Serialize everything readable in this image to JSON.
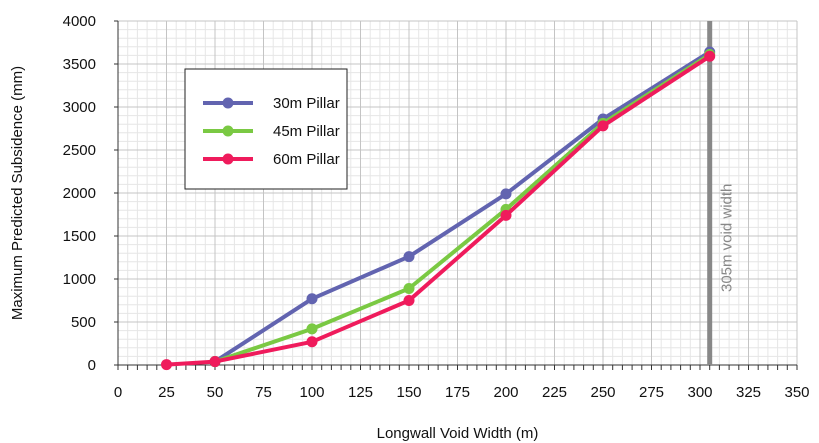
{
  "chart_data": {
    "type": "line",
    "title": "",
    "xlabel": "Longwall Void Width (m)",
    "ylabel": "Maximum Predicted Subsidence (mm)",
    "xlim": [
      0,
      350
    ],
    "ylim": [
      0,
      4000
    ],
    "x_major_step": 25,
    "y_major_step": 500,
    "x_minor_step": 5,
    "y_minor_step": 100,
    "grid": true,
    "legend_position": "top-left",
    "series": [
      {
        "name": "30m Pillar",
        "color": "#6264b0",
        "x": [
          50,
          100,
          150,
          200,
          250,
          305
        ],
        "y": [
          40,
          770,
          1260,
          1990,
          2860,
          3640
        ]
      },
      {
        "name": "45m Pillar",
        "color": "#7ac943",
        "x": [
          50,
          100,
          150,
          200,
          250,
          305
        ],
        "y": [
          40,
          420,
          890,
          1810,
          2810,
          3610
        ]
      },
      {
        "name": "60m Pillar",
        "color": "#ef1b5c",
        "x": [
          25,
          50,
          100,
          150,
          200,
          250,
          305
        ],
        "y": [
          5,
          40,
          270,
          750,
          1740,
          2780,
          3590
        ]
      }
    ],
    "annotations": [
      {
        "type": "vline",
        "x": 305,
        "color": "#888888",
        "label": "305m void width"
      }
    ]
  }
}
